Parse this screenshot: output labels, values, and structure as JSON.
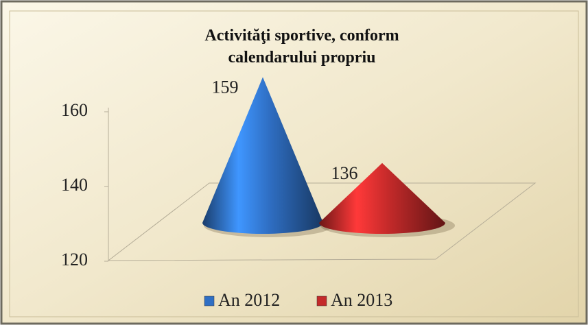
{
  "chart_data": {
    "type": "cone",
    "title": "Activităţi sportive, conform calendarului propriu",
    "categories": [
      null
    ],
    "series": [
      {
        "name": "An 2012",
        "color": "#2f6fc4",
        "values": [
          159
        ]
      },
      {
        "name": "An 2013",
        "color": "#c42a2a",
        "values": [
          136
        ]
      }
    ],
    "ylim": [
      120,
      160
    ],
    "yticks": [
      120,
      140,
      160
    ],
    "legend": "bottom",
    "data_labels": true
  }
}
